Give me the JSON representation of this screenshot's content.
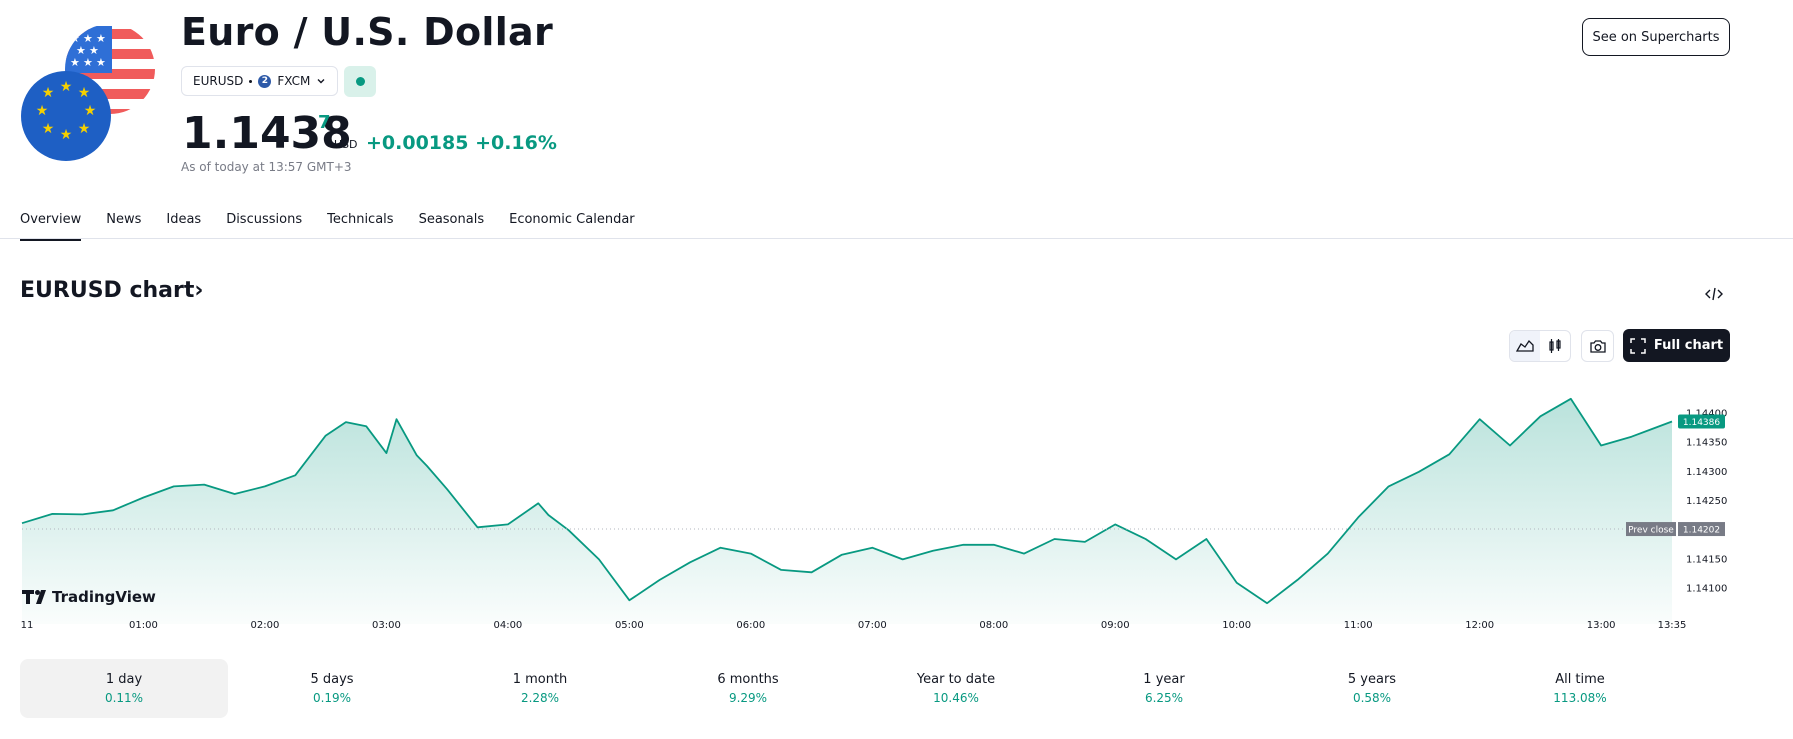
{
  "header": {
    "title": "Euro / U.S. Dollar",
    "symbol": "EURUSD",
    "exchange": "FXCM",
    "exchange_logo_letter": "2",
    "market_status_color": "#089981",
    "price_main": "1.1438",
    "price_sup": "7",
    "currency": "USD",
    "change": "+0.00185 +0.16%",
    "as_of": "As of today at 13:57 GMT+3",
    "supercharts_label": "See on Supercharts"
  },
  "tabs": [
    "Overview",
    "News",
    "Ideas",
    "Discussions",
    "Technicals",
    "Seasonals",
    "Economic Calendar"
  ],
  "chart_header": {
    "title": "EURUSD chart",
    "full_chart_label": "Full chart",
    "icons": [
      "embed-code-icon",
      "area-chart-icon",
      "candles-icon",
      "camera-icon",
      "fullscreen-icon"
    ]
  },
  "chart_data": {
    "type": "area",
    "watermark": "TradingView",
    "line_color": "#089981",
    "x_ticks": [
      "11",
      "01:00",
      "02:00",
      "03:00",
      "04:00",
      "05:00",
      "06:00",
      "07:00",
      "08:00",
      "09:00",
      "10:00",
      "11:00",
      "12:00",
      "13:00",
      "13:35"
    ],
    "y_ticks": [
      "1.14400",
      "1.14350",
      "1.14300",
      "1.14250",
      "1.14150",
      "1.14100"
    ],
    "ylim": [
      1.1406,
      1.1444
    ],
    "last_price_label": "1.14386",
    "last_price": 1.14386,
    "prev_close_label": "Prev close",
    "prev_close_value": "1.14202",
    "prev_close": 1.14202,
    "grid": false,
    "series": [
      {
        "x": [
          "00:00",
          "00:15",
          "00:30",
          "00:45",
          "01:00",
          "01:15",
          "01:30",
          "01:45",
          "02:00",
          "02:15",
          "02:30",
          "02:40",
          "02:50",
          "03:00",
          "03:05",
          "03:15",
          "03:20",
          "03:30",
          "03:45",
          "04:00",
          "04:15",
          "04:20",
          "04:30",
          "04:45",
          "05:00",
          "05:15",
          "05:30",
          "05:45",
          "06:00",
          "06:15",
          "06:30",
          "06:45",
          "07:00",
          "07:15",
          "07:30",
          "07:45",
          "08:00",
          "08:15",
          "08:30",
          "08:45",
          "09:00",
          "09:15",
          "09:30",
          "09:45",
          "10:00",
          "10:15",
          "10:30",
          "10:45",
          "11:00",
          "11:15",
          "11:30",
          "11:45",
          "12:00",
          "12:15",
          "12:30",
          "12:45",
          "13:00",
          "13:15",
          "13:35"
        ],
        "y": [
          1.14212,
          1.14228,
          1.14227,
          1.14234,
          1.14256,
          1.14275,
          1.14278,
          1.14262,
          1.14275,
          1.14294,
          1.14362,
          1.14385,
          1.14378,
          1.14332,
          1.1439,
          1.14328,
          1.1431,
          1.1427,
          1.14205,
          1.1421,
          1.14246,
          1.14226,
          1.142,
          1.1415,
          1.1408,
          1.14115,
          1.14145,
          1.1417,
          1.1416,
          1.14132,
          1.14128,
          1.14158,
          1.1417,
          1.1415,
          1.14165,
          1.14175,
          1.14175,
          1.1416,
          1.14185,
          1.1418,
          1.1421,
          1.14185,
          1.1415,
          1.14185,
          1.1411,
          1.14075,
          1.14115,
          1.1416,
          1.14222,
          1.14275,
          1.143,
          1.1433,
          1.1439,
          1.14345,
          1.14395,
          1.14425,
          1.14345,
          1.1436,
          1.14386
        ]
      }
    ]
  },
  "periods": [
    {
      "label": "1 day",
      "value": "0.11%"
    },
    {
      "label": "5 days",
      "value": "0.19%"
    },
    {
      "label": "1 month",
      "value": "2.28%"
    },
    {
      "label": "6 months",
      "value": "9.29%"
    },
    {
      "label": "Year to date",
      "value": "10.46%"
    },
    {
      "label": "1 year",
      "value": "6.25%"
    },
    {
      "label": "5 years",
      "value": "0.58%"
    },
    {
      "label": "All time",
      "value": "113.08%"
    }
  ]
}
